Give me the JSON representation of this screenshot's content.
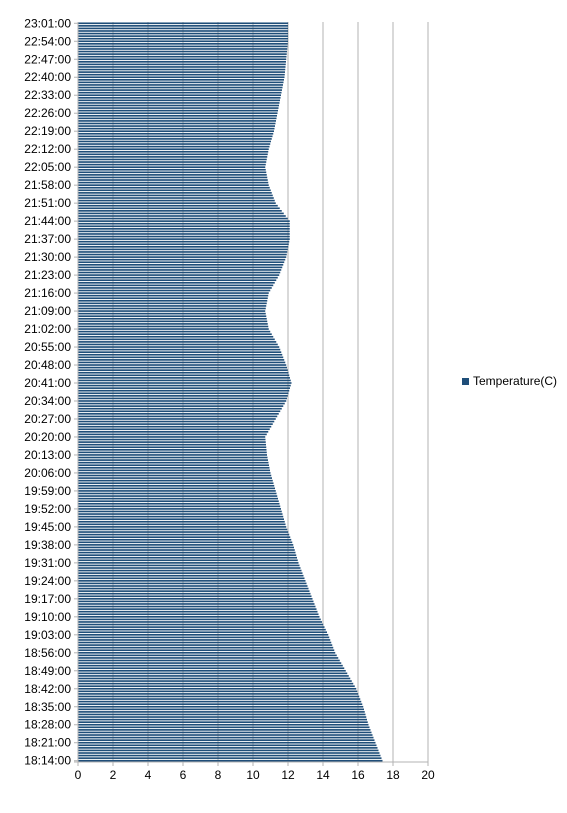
{
  "chart_data": {
    "type": "bar",
    "orientation": "horizontal",
    "title": "",
    "xlabel": "",
    "ylabel": "",
    "xlim": [
      0,
      20
    ],
    "x_ticks": [
      "0",
      "2",
      "4",
      "6",
      "8",
      "10",
      "12",
      "14",
      "16",
      "18",
      "20"
    ],
    "grid": true,
    "legend_position": "right",
    "series_color": "#1f4e79",
    "series": [
      {
        "name": "Temperature(C)",
        "color": "#1f4e79"
      }
    ],
    "tick_labels": [
      "18:14:00",
      "18:21:00",
      "18:28:00",
      "18:35:00",
      "18:42:00",
      "18:49:00",
      "18:56:00",
      "19:03:00",
      "19:10:00",
      "19:17:00",
      "19:24:00",
      "19:31:00",
      "19:38:00",
      "19:45:00",
      "19:52:00",
      "19:59:00",
      "20:06:00",
      "20:13:00",
      "20:20:00",
      "20:27:00",
      "20:34:00",
      "20:41:00",
      "20:48:00",
      "20:55:00",
      "21:02:00",
      "21:09:00",
      "21:16:00",
      "21:23:00",
      "21:30:00",
      "21:37:00",
      "21:44:00",
      "21:51:00",
      "21:58:00",
      "22:05:00",
      "22:12:00",
      "22:19:00",
      "22:26:00",
      "22:33:00",
      "22:40:00",
      "22:47:00",
      "22:54:00",
      "23:01:00"
    ],
    "profile_start": "18:14:00",
    "profile_end": "23:01:00",
    "sample_interval_minutes": 1,
    "profile": [
      [
        "18:14:00",
        17.4
      ],
      [
        "18:21:00",
        17.0
      ],
      [
        "18:28:00",
        16.6
      ],
      [
        "18:35:00",
        16.3
      ],
      [
        "18:42:00",
        15.9
      ],
      [
        "18:49:00",
        15.3
      ],
      [
        "18:56:00",
        14.7
      ],
      [
        "19:03:00",
        14.3
      ],
      [
        "19:10:00",
        13.8
      ],
      [
        "19:17:00",
        13.4
      ],
      [
        "19:24:00",
        13.0
      ],
      [
        "19:31:00",
        12.6
      ],
      [
        "19:38:00",
        12.3
      ],
      [
        "19:45:00",
        11.9
      ],
      [
        "19:52:00",
        11.6
      ],
      [
        "19:59:00",
        11.3
      ],
      [
        "20:06:00",
        11.0
      ],
      [
        "20:13:00",
        10.8
      ],
      [
        "20:20:00",
        10.7
      ],
      [
        "20:27:00",
        11.3
      ],
      [
        "20:34:00",
        11.9
      ],
      [
        "20:41:00",
        12.2
      ],
      [
        "20:48:00",
        11.9
      ],
      [
        "20:55:00",
        11.5
      ],
      [
        "21:02:00",
        10.9
      ],
      [
        "21:09:00",
        10.7
      ],
      [
        "21:16:00",
        10.9
      ],
      [
        "21:23:00",
        11.5
      ],
      [
        "21:30:00",
        11.9
      ],
      [
        "21:37:00",
        12.1
      ],
      [
        "21:44:00",
        12.1
      ],
      [
        "21:51:00",
        11.3
      ],
      [
        "21:58:00",
        10.9
      ],
      [
        "22:05:00",
        10.7
      ],
      [
        "22:12:00",
        10.9
      ],
      [
        "22:19:00",
        11.2
      ],
      [
        "22:26:00",
        11.4
      ],
      [
        "22:33:00",
        11.6
      ],
      [
        "22:40:00",
        11.8
      ],
      [
        "22:47:00",
        11.9
      ],
      [
        "22:54:00",
        12.0
      ],
      [
        "23:01:00",
        12.0
      ]
    ]
  }
}
